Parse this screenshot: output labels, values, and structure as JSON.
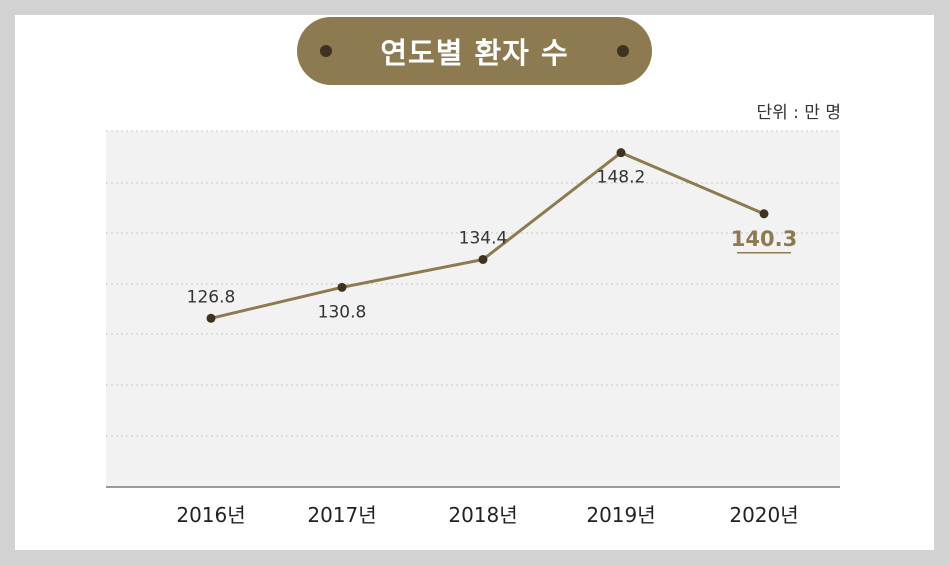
{
  "title": "연도별 환자 수",
  "unit_label": "단위 : 만 명",
  "colors": {
    "pill": "#8e7a50",
    "line": "#8e7a50",
    "point": "#3e3320",
    "plot_bg": "#f2f2f2",
    "highlight": "#8e7a50"
  },
  "chart_data": {
    "type": "line",
    "title": "연도별 환자 수",
    "unit": "단위 : 만 명",
    "categories": [
      "2016년",
      "2017년",
      "2018년",
      "2019년",
      "2020년"
    ],
    "series": [
      {
        "name": "환자 수",
        "values": [
          126.8,
          130.8,
          134.4,
          148.2,
          140.3
        ]
      }
    ],
    "data_labels": [
      "126.8",
      "130.8",
      "134.4",
      "148.2",
      "140.3"
    ],
    "label_position": [
      "above",
      "below",
      "above",
      "below",
      "below"
    ],
    "highlight_index": 4,
    "ylim": [
      105,
      151
    ],
    "grid": true,
    "xlabel": "",
    "ylabel": ""
  }
}
